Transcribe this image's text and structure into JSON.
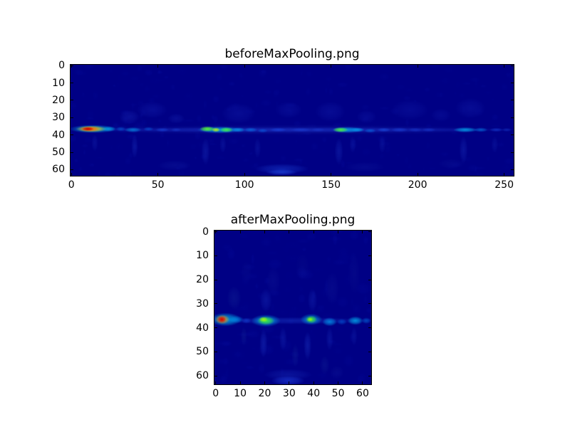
{
  "figure": {
    "background": "#ffffff",
    "text_color": "#000000"
  },
  "chart_data": [
    {
      "type": "heatmap",
      "title": "beforeMaxPooling.png",
      "colormap": "jet",
      "data_shape_rows_cols": [
        64,
        256
      ],
      "x_axis_ticks": [
        0,
        50,
        100,
        150,
        200,
        250
      ],
      "y_axis_ticks": [
        0,
        10,
        20,
        30,
        40,
        50,
        60
      ],
      "x_range": [
        0,
        255
      ],
      "y_range": [
        0,
        63
      ],
      "y_inverted": true,
      "grid": false,
      "background_color": "#000085",
      "noise": {
        "seed": 11,
        "count": 300,
        "max_alpha": 0.16,
        "color": "#0c18b4"
      },
      "features_legend": "each feature = [col, row, radius_x, radius_y, color, alpha] describing activation blobs along the row~37 band",
      "features": [
        [
          128,
          37.5,
          130,
          3.0,
          "#141fa0",
          0.5
        ],
        [
          128,
          37.5,
          130,
          1.6,
          "#2244dd",
          0.45
        ],
        [
          13,
          37,
          14,
          2.4,
          "#00d5ff",
          0.7
        ],
        [
          12,
          37,
          9,
          1.9,
          "#ffe000",
          0.85
        ],
        [
          11,
          37,
          6,
          1.5,
          "#ff5000",
          0.95
        ],
        [
          10,
          37,
          3.5,
          1.1,
          "#c80000",
          1.0
        ],
        [
          22,
          37,
          4,
          1.5,
          "#00cfff",
          0.55
        ],
        [
          29,
          37,
          3,
          1.3,
          "#0090ff",
          0.4
        ],
        [
          36,
          37.5,
          5,
          1.5,
          "#00bfff",
          0.55
        ],
        [
          45,
          37,
          3,
          1.2,
          "#0080ff",
          0.4
        ],
        [
          53,
          37.5,
          4,
          1.2,
          "#2060ff",
          0.4
        ],
        [
          61,
          37.5,
          3,
          1.1,
          "#1e50e6",
          0.35
        ],
        [
          34,
          30,
          6,
          4,
          "#2238c8",
          0.3
        ],
        [
          47,
          26,
          9,
          5,
          "#1c2fc0",
          0.28
        ],
        [
          61,
          31,
          5,
          3,
          "#2238c8",
          0.25
        ],
        [
          37,
          47,
          2,
          7,
          "#1e3cc8",
          0.32
        ],
        [
          14,
          45,
          2,
          5,
          "#1a34c0",
          0.28
        ],
        [
          86,
          37.5,
          13,
          2.0,
          "#00cfff",
          0.65
        ],
        [
          79,
          37,
          4.5,
          1.6,
          "#5aff2d",
          0.95
        ],
        [
          84,
          37.5,
          2.5,
          1.3,
          "#c8ff00",
          0.9
        ],
        [
          90,
          37.5,
          4,
          1.5,
          "#46ff3c",
          0.9
        ],
        [
          97,
          37.5,
          4,
          1.4,
          "#00bfff",
          0.6
        ],
        [
          104,
          37.5,
          4,
          1.3,
          "#0096ff",
          0.5
        ],
        [
          111,
          38,
          3,
          1.2,
          "#0080ff",
          0.4
        ],
        [
          120,
          37.5,
          5,
          1.2,
          "#1e5aff",
          0.4
        ],
        [
          133,
          37.5,
          6,
          1.2,
          "#2050f0",
          0.35
        ],
        [
          143,
          37.5,
          4,
          1.1,
          "#1e48e6",
          0.3
        ],
        [
          78,
          50,
          2.5,
          8,
          "#1e3cc8",
          0.32
        ],
        [
          88,
          46,
          2,
          5,
          "#1a34c0",
          0.28
        ],
        [
          108,
          48,
          2,
          6,
          "#1a34c0",
          0.28
        ],
        [
          97,
          28,
          10,
          6,
          "#1c2fc0",
          0.26
        ],
        [
          126,
          26,
          8,
          5,
          "#1a2cbe",
          0.24
        ],
        [
          160,
          37.5,
          9,
          1.8,
          "#00cfff",
          0.65
        ],
        [
          156,
          37.5,
          4.5,
          1.5,
          "#50ff32",
          0.9
        ],
        [
          166,
          37.5,
          4,
          1.3,
          "#00bfff",
          0.55
        ],
        [
          173,
          38,
          3.5,
          1.2,
          "#0090ff",
          0.45
        ],
        [
          150,
          27,
          9,
          6,
          "#1c2fc0",
          0.26
        ],
        [
          171,
          30,
          6,
          4,
          "#1a2cbe",
          0.24
        ],
        [
          155,
          50,
          2.5,
          8,
          "#1e3cc8",
          0.32
        ],
        [
          163,
          46,
          2,
          5,
          "#1a34c0",
          0.26
        ],
        [
          181,
          37.5,
          4,
          1.2,
          "#1e64ff",
          0.45
        ],
        [
          190,
          37.5,
          5,
          1.3,
          "#2055f5",
          0.4
        ],
        [
          199,
          37.5,
          4,
          1.2,
          "#1e48e6",
          0.35
        ],
        [
          207,
          37.5,
          4,
          1.2,
          "#2050f0",
          0.35
        ],
        [
          196,
          26,
          11,
          6,
          "#1a2cbe",
          0.24
        ],
        [
          214,
          29,
          6,
          4,
          "#1a2cbe",
          0.22
        ],
        [
          180,
          46,
          2,
          5,
          "#1a34c0",
          0.26
        ],
        [
          228,
          37.5,
          7,
          1.5,
          "#00c8ff",
          0.7
        ],
        [
          237,
          37.5,
          4,
          1.3,
          "#00a0ff",
          0.5
        ],
        [
          246,
          37.5,
          4,
          1.2,
          "#2060ff",
          0.4
        ],
        [
          252,
          37.5,
          3,
          1.1,
          "#1e50e6",
          0.38
        ],
        [
          231,
          25,
          9,
          6,
          "#1c2fc0",
          0.26
        ],
        [
          227,
          49,
          2.5,
          8,
          "#1e3cc8",
          0.32
        ],
        [
          245,
          46,
          2,
          5,
          "#1a34c0",
          0.26
        ],
        [
          122,
          60,
          16,
          3,
          "#2050e6",
          0.4
        ],
        [
          122,
          62,
          9,
          1.8,
          "#2e64ff",
          0.45
        ],
        [
          60,
          58,
          10,
          3,
          "#101ea0",
          0.35
        ],
        [
          170,
          59,
          12,
          3,
          "#101ea0",
          0.3
        ],
        [
          220,
          57,
          8,
          3,
          "#0f1c9a",
          0.28
        ]
      ]
    },
    {
      "type": "heatmap",
      "title": "afterMaxPooling.png",
      "colormap": "jet",
      "data_shape_rows_cols": [
        64,
        64
      ],
      "x_axis_ticks": [
        0,
        10,
        20,
        30,
        40,
        50,
        60
      ],
      "y_axis_ticks": [
        0,
        10,
        20,
        30,
        40,
        50,
        60
      ],
      "x_range": [
        0,
        63
      ],
      "y_range": [
        0,
        63
      ],
      "y_inverted": true,
      "grid": false,
      "background_color": "#000085",
      "noise": {
        "seed": 5,
        "count": 140,
        "max_alpha": 0.18,
        "color": "#0c18b4"
      },
      "features_legend": "each feature = [col, row, radius_x, radius_y, color, alpha] describing activation blobs along the row~37 band",
      "features": [
        [
          32,
          37.5,
          33,
          1.5,
          "#1e46d2",
          0.4
        ],
        [
          4.5,
          37,
          6.5,
          2.8,
          "#00d5ff",
          0.75
        ],
        [
          3.2,
          37,
          3,
          2,
          "#ff8c00",
          0.9
        ],
        [
          3,
          37,
          1.8,
          1.4,
          "#d80000",
          1.0
        ],
        [
          9,
          37,
          3,
          1.5,
          "#00a8ff",
          0.5
        ],
        [
          13,
          37.5,
          2,
          1.2,
          "#1e64ff",
          0.4
        ],
        [
          21,
          37.5,
          6,
          2.6,
          "#00cfff",
          0.65
        ],
        [
          21,
          37.5,
          3.6,
          1.8,
          "#3cf03c",
          0.95
        ],
        [
          20,
          37,
          1.8,
          1.1,
          "#b4ff00",
          0.85
        ],
        [
          39.5,
          37,
          4.5,
          2.4,
          "#00cfff",
          0.6
        ],
        [
          39.5,
          37,
          2.4,
          1.6,
          "#46e632",
          0.95
        ],
        [
          39,
          37,
          1.2,
          0.9,
          "#aaff00",
          0.8
        ],
        [
          47,
          38,
          3,
          1.8,
          "#00b4ff",
          0.65
        ],
        [
          52,
          38,
          2,
          1.3,
          "#0080ff",
          0.4
        ],
        [
          57.5,
          37.5,
          3.2,
          1.8,
          "#00c8ff",
          0.7
        ],
        [
          62,
          37.5,
          2,
          1.3,
          "#0096ff",
          0.45
        ],
        [
          20,
          47,
          1.6,
          6,
          "#1e3cc8",
          0.38
        ],
        [
          28,
          45,
          1.6,
          5,
          "#1a34c0",
          0.33
        ],
        [
          38,
          48,
          1.6,
          6,
          "#1e3cc8",
          0.38
        ],
        [
          47,
          45,
          1.5,
          5,
          "#1a34c0",
          0.33
        ],
        [
          57,
          44,
          1.3,
          4,
          "#1a34c0",
          0.28
        ],
        [
          12,
          44,
          1.3,
          4,
          "#16309b",
          0.28
        ],
        [
          33,
          52,
          1.5,
          5,
          "#16309b",
          0.28
        ],
        [
          8,
          28,
          3,
          5,
          "#16309b",
          0.32
        ],
        [
          21,
          29,
          2.5,
          5,
          "#1a34c0",
          0.36
        ],
        [
          24,
          21,
          3,
          6,
          "#141f9b",
          0.28
        ],
        [
          40,
          29,
          2,
          5,
          "#1a34c0",
          0.32
        ],
        [
          48,
          24,
          3,
          7,
          "#141f9b",
          0.28
        ],
        [
          57,
          18,
          2.5,
          9,
          "#121c96",
          0.24
        ],
        [
          36,
          15,
          3,
          6,
          "#101a90",
          0.2
        ],
        [
          13,
          17,
          2.5,
          5,
          "#101a90",
          0.18
        ],
        [
          30,
          62.5,
          7,
          2,
          "#2e5aff",
          0.45
        ],
        [
          30,
          60,
          10,
          2.5,
          "#1e3cc8",
          0.32
        ],
        [
          45,
          56,
          2,
          4,
          "#16309b",
          0.28
        ],
        [
          50,
          59,
          3,
          3,
          "#141f9b",
          0.26
        ]
      ]
    }
  ]
}
